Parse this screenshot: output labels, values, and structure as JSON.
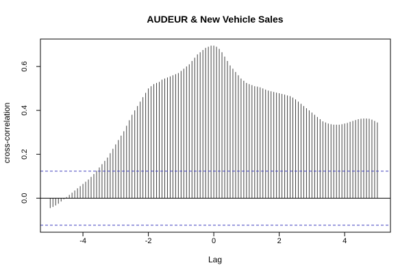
{
  "chart_data": {
    "type": "bar",
    "title": "AUDEUR & New Vehicle Sales",
    "xlabel": "Lag",
    "ylabel": "cross-correlation",
    "xlim": [
      -5.3,
      5.4
    ],
    "ylim": [
      -0.155,
      0.725
    ],
    "x_ticks": [
      "-4",
      "-2",
      "0",
      "2",
      "4"
    ],
    "y_ticks": [
      "0.0",
      "0.2",
      "0.4",
      "0.6"
    ],
    "zero_line": true,
    "confidence_bounds": [
      0.123,
      -0.123
    ],
    "grid": false,
    "legend": "none",
    "colors": {
      "bars": "#404040",
      "bounds": "#3d3dbd",
      "axes": "#000000"
    },
    "series": [
      {
        "x": [
          -5.0,
          -4.9167,
          -4.8333,
          -4.75,
          -4.6667,
          -4.5833,
          -4.5,
          -4.4167,
          -4.3333,
          -4.25,
          -4.1667,
          -4.0833,
          -4.0,
          -3.9167,
          -3.8333,
          -3.75,
          -3.6667,
          -3.5833,
          -3.5,
          -3.4167,
          -3.3333,
          -3.25,
          -3.1667,
          -3.0833,
          -3.0,
          -2.9167,
          -2.8333,
          -2.75,
          -2.6667,
          -2.5833,
          -2.5,
          -2.4167,
          -2.3333,
          -2.25,
          -2.1667,
          -2.0833,
          -2.0,
          -1.9167,
          -1.8333,
          -1.75,
          -1.6667,
          -1.5833,
          -1.5,
          -1.4167,
          -1.3333,
          -1.25,
          -1.1667,
          -1.0833,
          -1.0,
          -0.9167,
          -0.8333,
          -0.75,
          -0.6667,
          -0.5833,
          -0.5,
          -0.4167,
          -0.3333,
          -0.25,
          -0.1667,
          -0.0833,
          0.0,
          0.0833,
          0.1667,
          0.25,
          0.3333,
          0.4167,
          0.5,
          0.5833,
          0.6667,
          0.75,
          0.8333,
          0.9167,
          1.0,
          1.0833,
          1.1667,
          1.25,
          1.3333,
          1.4167,
          1.5,
          1.5833,
          1.6667,
          1.75,
          1.8333,
          1.9167,
          2.0,
          2.0833,
          2.1667,
          2.25,
          2.3333,
          2.4167,
          2.5,
          2.5833,
          2.6667,
          2.75,
          2.8333,
          2.9167,
          3.0,
          3.0833,
          3.1667,
          3.25,
          3.3333,
          3.4167,
          3.5,
          3.5833,
          3.6667,
          3.75,
          3.8333,
          3.9167,
          4.0,
          4.0833,
          4.1667,
          4.25,
          4.3333,
          4.4167,
          4.5,
          4.5833,
          4.6667,
          4.75,
          4.8333,
          4.9167,
          5.0
        ],
        "values": [
          -0.045,
          -0.04,
          -0.033,
          -0.025,
          -0.015,
          -0.005,
          0.005,
          0.015,
          0.025,
          0.035,
          0.045,
          0.055,
          0.065,
          0.075,
          0.085,
          0.097,
          0.11,
          0.125,
          0.14,
          0.155,
          0.17,
          0.185,
          0.205,
          0.225,
          0.245,
          0.265,
          0.285,
          0.305,
          0.33,
          0.355,
          0.38,
          0.4,
          0.42,
          0.44,
          0.46,
          0.48,
          0.5,
          0.51,
          0.52,
          0.525,
          0.53,
          0.54,
          0.545,
          0.55,
          0.555,
          0.56,
          0.565,
          0.57,
          0.58,
          0.59,
          0.6,
          0.61,
          0.625,
          0.64,
          0.655,
          0.665,
          0.675,
          0.685,
          0.69,
          0.695,
          0.695,
          0.69,
          0.68,
          0.665,
          0.645,
          0.625,
          0.605,
          0.59,
          0.575,
          0.56,
          0.545,
          0.535,
          0.525,
          0.52,
          0.515,
          0.51,
          0.508,
          0.505,
          0.5,
          0.495,
          0.49,
          0.487,
          0.484,
          0.481,
          0.478,
          0.475,
          0.472,
          0.468,
          0.465,
          0.458,
          0.45,
          0.44,
          0.43,
          0.42,
          0.41,
          0.4,
          0.39,
          0.38,
          0.37,
          0.36,
          0.35,
          0.345,
          0.34,
          0.337,
          0.335,
          0.335,
          0.335,
          0.337,
          0.34,
          0.343,
          0.348,
          0.352,
          0.356,
          0.36,
          0.362,
          0.363,
          0.363,
          0.362,
          0.358,
          0.352,
          0.345
        ]
      }
    ]
  }
}
